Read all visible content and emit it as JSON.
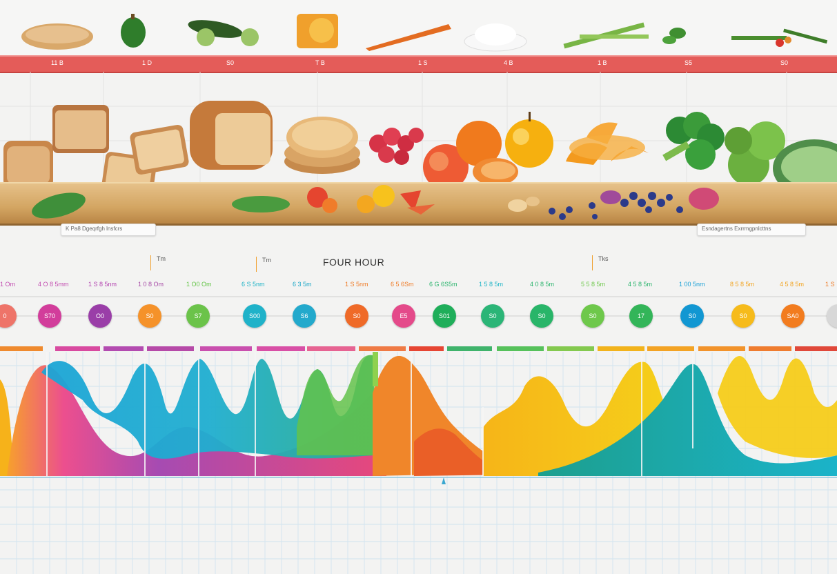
{
  "timeline_labels": [
    "11 B",
    "1 D",
    "S0",
    "T B",
    "1 S",
    "4 B",
    "1 B",
    "S5",
    "S0"
  ],
  "caption_left": "K Pa8 Dgeqrfgh lnsfcrs",
  "caption_right": "Esndagertns Exrrmgpnlcttns",
  "heading": "FOUR HOUR",
  "mini_labels": [
    "Tm",
    "Tm",
    "Tks"
  ],
  "time_labels": [
    {
      "text": "1 Om",
      "color": "#c24bb0"
    },
    {
      "text": "4 O 8 5mm",
      "color": "#c24bb0"
    },
    {
      "text": "1 S 8 5nm",
      "color": "#b13fae"
    },
    {
      "text": "1 0 8 Om",
      "color": "#a64aa6"
    },
    {
      "text": "1 O0 Om",
      "color": "#64c547"
    },
    {
      "text": "6 S 5nm",
      "color": "#1cb2c6"
    },
    {
      "text": "6 3 5m",
      "color": "#1ba7c7"
    },
    {
      "text": "1 S 5nm",
      "color": "#ef7a25"
    },
    {
      "text": "6 5 6Sm",
      "color": "#ef7a25"
    },
    {
      "text": "6 G 6S5m",
      "color": "#28b36b"
    },
    {
      "text": "1 5 8 5m",
      "color": "#1ab3c6"
    },
    {
      "text": "4 0 8 5m",
      "color": "#28b36b"
    },
    {
      "text": "5 5 8 5m",
      "color": "#6ec84b"
    },
    {
      "text": "4 5 8 5m",
      "color": "#28b36b"
    },
    {
      "text": "1 00 5nm",
      "color": "#169fd6"
    },
    {
      "text": "8 5 8 5m",
      "color": "#f2a21c"
    },
    {
      "text": "4 5 8 5m",
      "color": "#f2a21c"
    },
    {
      "text": "1 S",
      "color": "#ef7a25"
    }
  ],
  "dots": [
    {
      "text": "0",
      "color": "#ee7469"
    },
    {
      "text": "S70",
      "color": "#d23d9b"
    },
    {
      "text": "O0",
      "color": "#9a3ea8"
    },
    {
      "text": "S0",
      "color": "#f5922a"
    },
    {
      "text": "S7",
      "color": "#6bc34a"
    },
    {
      "text": "S00",
      "color": "#1fb2c9"
    },
    {
      "text": "S6",
      "color": "#23a9cc"
    },
    {
      "text": "S0",
      "color": "#ef6a28"
    },
    {
      "text": "E5",
      "color": "#e44a8a"
    },
    {
      "text": "S01",
      "color": "#1fae5a"
    },
    {
      "text": "S0",
      "color": "#2bb577"
    },
    {
      "text": "S0",
      "color": "#29b569"
    },
    {
      "text": "S0",
      "color": "#6ec84b"
    },
    {
      "text": "17",
      "color": "#33b559"
    },
    {
      "text": "S0",
      "color": "#1297d2"
    },
    {
      "text": "S0",
      "color": "#f6bb1b"
    },
    {
      "text": "SA0",
      "color": "#f27c1f"
    },
    {
      "text": "",
      "color": "#d8d8d8"
    }
  ]
}
